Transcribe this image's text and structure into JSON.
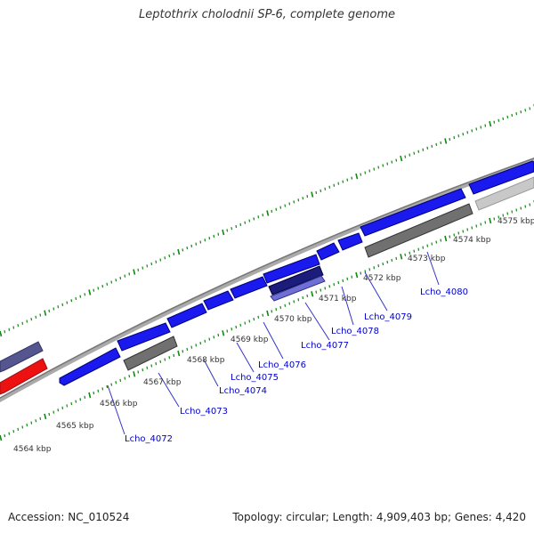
{
  "title": "Leptothrix cholodnii SP-6, complete genome",
  "footer": {
    "accession": "Accession: NC_010524",
    "summary": "Topology: circular; Length: 4,909,403 bp; Genes: 4,420"
  },
  "colors": {
    "forward_gene": "#1a1aee",
    "gene_gray": "#707070",
    "gene_light": "#c8c8c8",
    "gene_navy": "#1c1c7a",
    "gene_lavender": "#6f6fd6",
    "gene_slate": "#55558f",
    "gene_red": "#ee1111",
    "backbone": "#888888",
    "tick": "#118811",
    "label_blue": "#0000cc",
    "kbp_text": "#333333"
  },
  "scale_labels": [
    "4564 kbp",
    "4565 kbp",
    "4566 kbp",
    "4567 kbp",
    "4568 kbp",
    "4569 kbp",
    "4570 kbp",
    "4571 kbp",
    "4572 kbp",
    "4573 kbp",
    "4574 kbp",
    "4575 kbp"
  ],
  "gene_labels": [
    "Lcho_4072",
    "Lcho_4073",
    "Lcho_4074",
    "Lcho_4075",
    "Lcho_4076",
    "Lcho_4077",
    "Lcho_4078",
    "Lcho_4079",
    "Lcho_4080"
  ]
}
